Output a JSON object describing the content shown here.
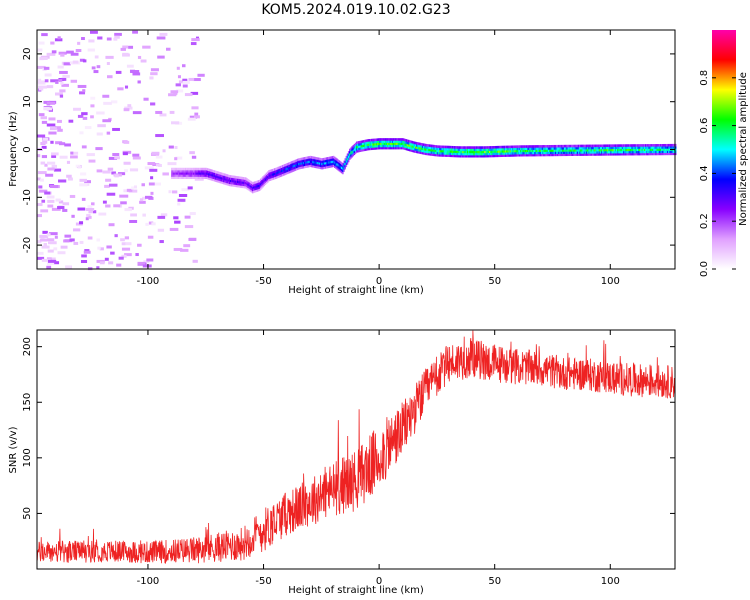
{
  "title": "KOM5.2024.019.10.02.G23",
  "chart_data": [
    {
      "type": "heatmap",
      "xlabel": "Height of straight line (km)",
      "ylabel": "Frequency (Hz)",
      "xlim": [
        -148,
        128
      ],
      "ylim": [
        -25,
        25
      ],
      "xticks": [
        -100,
        -50,
        0,
        50,
        100
      ],
      "yticks": [
        -20,
        -10,
        0,
        10,
        20
      ],
      "colorbar": {
        "label": "Normalized spectral amplitude",
        "range": [
          0,
          1
        ],
        "ticks": [
          0.0,
          0.2,
          0.4,
          0.6,
          0.8
        ],
        "colors": [
          "#ffffff",
          "#e0a0ff",
          "#8800ff",
          "#0000ff",
          "#00ffff",
          "#00ff00",
          "#ffff00",
          "#ff0000",
          "#ff00aa"
        ]
      },
      "ridge": {
        "x": [
          -90,
          -80,
          -75,
          -65,
          -58,
          -55,
          -52,
          -48,
          -45,
          -40,
          -35,
          -30,
          -25,
          -20,
          -16,
          -13,
          -10,
          -5,
          0,
          10,
          15,
          20,
          25,
          35,
          45,
          60,
          80,
          100,
          128
        ],
        "y": [
          -5,
          -5,
          -5,
          -6.5,
          -7,
          -8,
          -7.5,
          -5.5,
          -5,
          -4,
          -3,
          -2.5,
          -3,
          -2.5,
          -4,
          -1,
          0.5,
          1,
          1.2,
          1.2,
          0.5,
          0,
          -0.3,
          -0.5,
          -0.5,
          -0.3,
          -0.2,
          -0.1,
          0
        ],
        "amplitude": [
          0.2,
          0.25,
          0.3,
          0.3,
          0.28,
          0.3,
          0.32,
          0.3,
          0.35,
          0.38,
          0.4,
          0.4,
          0.42,
          0.45,
          0.45,
          0.5,
          0.55,
          0.6,
          0.62,
          0.62,
          0.6,
          0.58,
          0.6,
          0.62,
          0.65,
          0.6,
          0.55,
          0.6,
          0.55
        ]
      }
    },
    {
      "type": "line",
      "xlabel": "Height of straight line (km)",
      "ylabel": "SNR (v/v)",
      "xlim": [
        -148,
        128
      ],
      "ylim": [
        0,
        215
      ],
      "xticks": [
        -100,
        -50,
        0,
        50,
        100
      ],
      "yticks": [
        50,
        100,
        150,
        200
      ],
      "color": "#ee2222",
      "series": [
        {
          "trend_x": [
            -148,
            -120,
            -100,
            -80,
            -60,
            -50,
            -40,
            -30,
            -20,
            -10,
            0,
            10,
            20,
            30,
            40,
            50,
            60,
            70,
            80,
            90,
            100,
            110,
            128
          ],
          "trend_y": [
            15,
            16,
            15,
            17,
            22,
            35,
            50,
            60,
            72,
            80,
            100,
            125,
            160,
            185,
            190,
            185,
            182,
            180,
            176,
            175,
            172,
            170,
            168
          ],
          "noise": [
            10,
            10,
            10,
            12,
            15,
            20,
            20,
            22,
            25,
            28,
            30,
            25,
            20,
            18,
            18,
            18,
            16,
            16,
            15,
            15,
            15,
            15,
            15
          ]
        }
      ]
    }
  ]
}
